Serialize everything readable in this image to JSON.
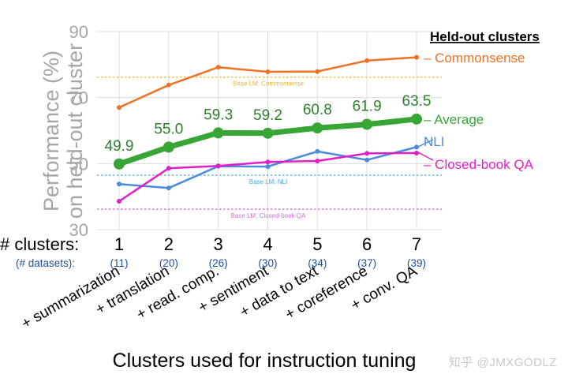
{
  "chart_data": {
    "type": "line",
    "ylabel": "Performance (%) on held-out cluster",
    "xlabel": "Clusters used for instruction tuning",
    "ylim": [
      30,
      90
    ],
    "yticks": [
      30,
      50,
      70,
      90
    ],
    "grid": true,
    "x_clusters_label": "# clusters:",
    "x_datasets_label": "(# datasets):",
    "x": [
      1,
      2,
      3,
      4,
      5,
      6,
      7
    ],
    "datasets": [
      "(11)",
      "(20)",
      "(26)",
      "(30)",
      "(34)",
      "(37)",
      "(39)"
    ],
    "cluster_names": [
      "+ summarization",
      "+ translation",
      "+ read. comp.",
      "+ sentiment",
      "+ data to text",
      "+ coreference",
      "+ conv. QA"
    ],
    "legend_title": "Held-out clusters",
    "series": [
      {
        "name": "Commonsense",
        "color": "#ee7124",
        "values": [
          67.0,
          73.8,
          79.2,
          77.8,
          77.9,
          81.2,
          82.2
        ],
        "data_labels": false
      },
      {
        "name": "Average",
        "color": "#37a635",
        "values": [
          49.9,
          55.0,
          59.3,
          59.2,
          60.8,
          61.9,
          63.5
        ],
        "data_labels": true,
        "bold": true
      },
      {
        "name": "NLI",
        "color": "#4a8bdf",
        "values": [
          43.8,
          42.6,
          49.2,
          49.1,
          53.7,
          51.1,
          55.0
        ],
        "data_labels": false
      },
      {
        "name": "Closed-book QA",
        "color": "#e11fc8",
        "values": [
          38.6,
          48.6,
          49.3,
          50.5,
          50.8,
          53.1,
          53.2
        ],
        "data_labels": false
      }
    ],
    "baselines": [
      {
        "label": "Base LM: Commonsense",
        "value": 76.2,
        "color": "#e8b830"
      },
      {
        "label": "Base LM: NLI",
        "value": 46.5,
        "color": "#4aa6d8"
      },
      {
        "label": "Base LM: Closed-book QA",
        "value": 36.2,
        "color": "#d96ad0"
      }
    ]
  },
  "watermark": "知乎 @JMXGODLZ"
}
